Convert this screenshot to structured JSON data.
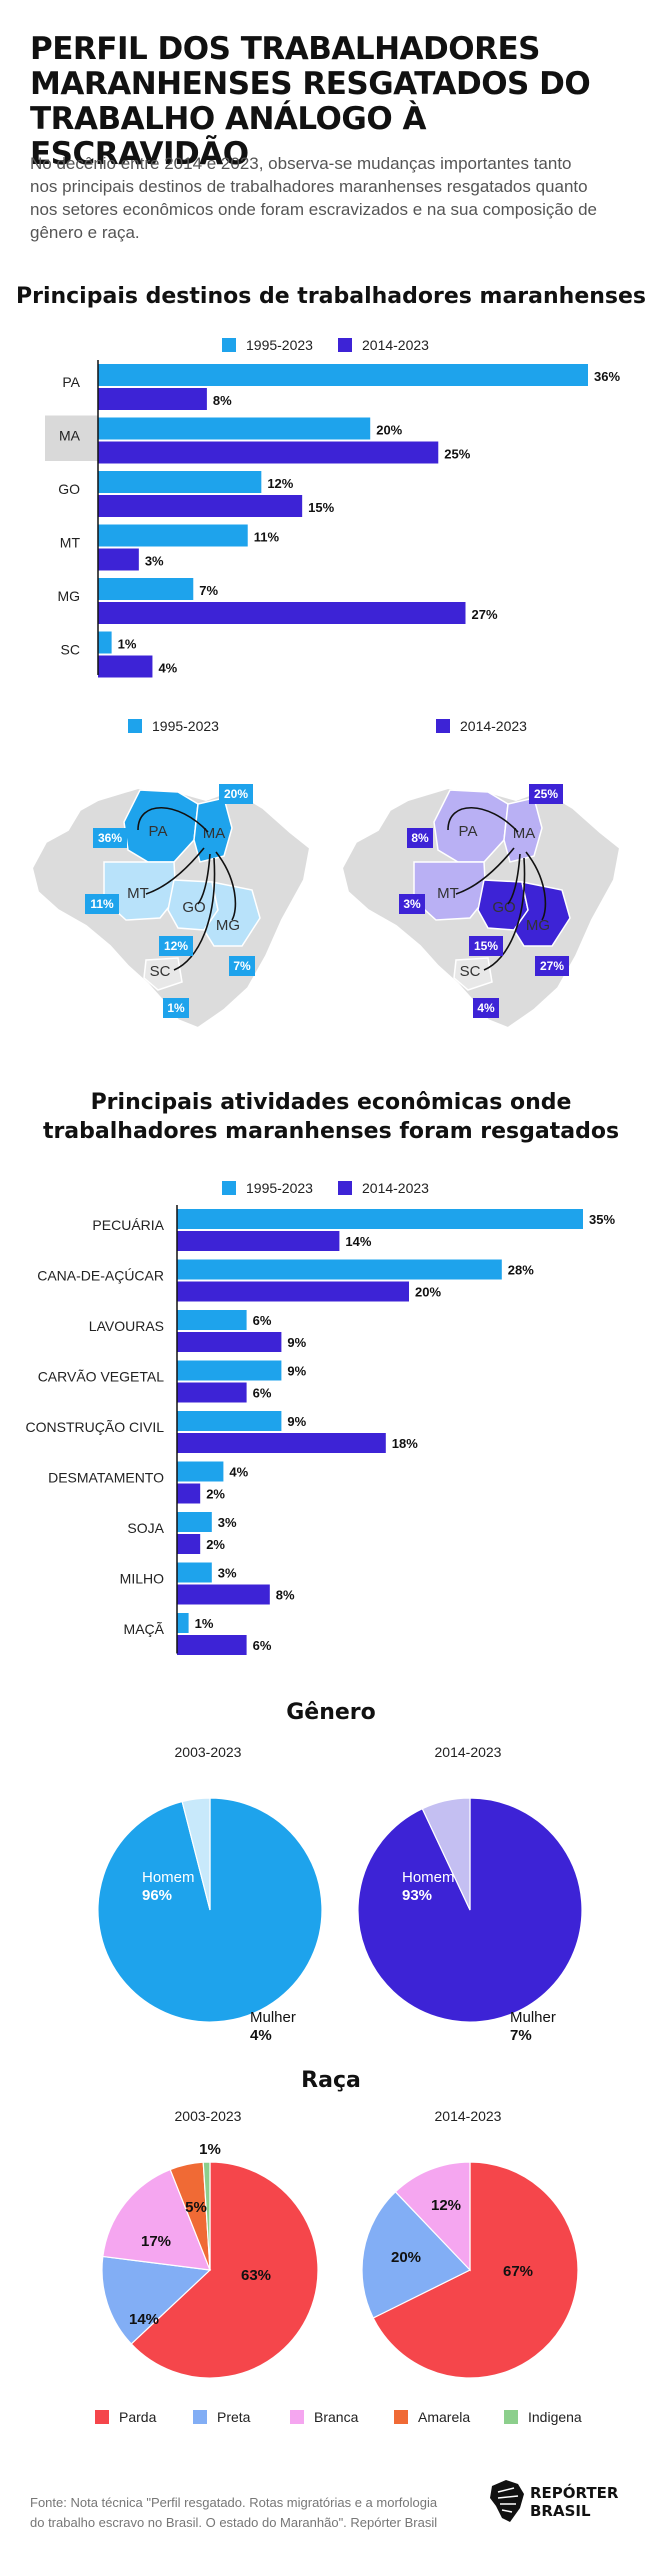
{
  "title_lines": [
    "PERFIL DOS TRABALHADORES",
    "MARANHENSES RESGATADOS DO",
    "TRABALHO ANÁLOGO À ESCRAVIDÃO"
  ],
  "intro_lines": [
    "No decênio entre 2014 e 2023, observa-se mudanças importantes tanto",
    "nos principais destinos de trabalhadores maranhenses resgatados quanto",
    "nos setores econômicos onde foram escravizados e na sua composição de",
    "gênero e raça."
  ],
  "colors": {
    "light": "#1ea3ec",
    "dark": "#3d23d6",
    "highlight": "#d9d9d9",
    "map_base": "#dcdcdc",
    "parda": "#f5464b",
    "preta": "#82aef5",
    "branca": "#f5a6f0",
    "amarela": "#f06a35",
    "indigena": "#8ccf8c"
  },
  "legend": {
    "s1": "1995-2023",
    "s2": "2014-2023"
  },
  "destinos_title": "Principais destinos de trabalhadores maranhenses",
  "atividades_title_lines": [
    "Principais atividades econômicas onde",
    "trabalhadores maranhenses foram resgatados"
  ],
  "genero_title": "Gênero",
  "raca_title": "Raça",
  "maps": {
    "left": {
      "legend": "1995-2023",
      "states": [
        "PA",
        "MA",
        "MT",
        "GO",
        "MG",
        "SC"
      ],
      "badges": {
        "PA": "36%",
        "MA": "20%",
        "MT": "11%",
        "GO": "12%",
        "MG": "7%",
        "SC": "1%"
      }
    },
    "right": {
      "legend": "2014-2023",
      "states": [
        "PA",
        "MA",
        "MT",
        "GO",
        "MG",
        "SC"
      ],
      "badges": {
        "PA": "8%",
        "MA": "25%",
        "MT": "3%",
        "GO": "15%",
        "MG": "27%",
        "SC": "4%"
      }
    }
  },
  "chart_data": [
    {
      "type": "bar",
      "orientation": "horizontal",
      "title": "Principais destinos de trabalhadores maranhenses",
      "categories": [
        "PA",
        "MA",
        "GO",
        "MT",
        "MG",
        "SC"
      ],
      "highlight": "MA",
      "series": [
        {
          "name": "1995-2023",
          "values": [
            36,
            20,
            12,
            11,
            7,
            1
          ],
          "labels": [
            "36%",
            "20%",
            "12%",
            "11%",
            "7%",
            "1%"
          ]
        },
        {
          "name": "2014-2023",
          "values": [
            8,
            25,
            15,
            3,
            27,
            4
          ],
          "labels": [
            "8%",
            "25%",
            "15%",
            "3%",
            "27%",
            "4%"
          ]
        }
      ],
      "xlim": [
        0,
        36
      ],
      "legend": "top"
    },
    {
      "type": "bar",
      "orientation": "horizontal",
      "title": "Principais atividades econômicas onde trabalhadores maranhenses foram resgatados",
      "categories": [
        "PECUÁRIA",
        "CANA-DE-AÇÚCAR",
        "LAVOURAS",
        "CARVÃO VEGETAL",
        "CONSTRUÇÃO CIVIL",
        "DESMATAMENTO",
        "SOJA",
        "MILHO",
        "MAÇÃ"
      ],
      "series": [
        {
          "name": "1995-2023",
          "values": [
            35,
            28,
            6,
            9,
            9,
            4,
            3,
            3,
            1
          ],
          "labels": [
            "35%",
            "28%",
            "6%",
            "9%",
            "9%",
            "4%",
            "3%",
            "3%",
            "1%"
          ]
        },
        {
          "name": "2014-2023",
          "values": [
            14,
            20,
            9,
            6,
            18,
            2,
            2,
            8,
            6
          ],
          "labels": [
            "14%",
            "20%",
            "9%",
            "6%",
            "18%",
            "2%",
            "2%",
            "8%",
            "6%"
          ]
        }
      ],
      "xlim": [
        0,
        35
      ],
      "legend": "top"
    },
    {
      "type": "pie",
      "title": "Gênero",
      "subtitle": "2003-2023",
      "slices": [
        {
          "name": "Homem",
          "value": 96,
          "label": "96%"
        },
        {
          "name": "Mulher",
          "value": 4,
          "label": "4%"
        }
      ]
    },
    {
      "type": "pie",
      "title": "Gênero",
      "subtitle": "2014-2023",
      "slices": [
        {
          "name": "Homem",
          "value": 93,
          "label": "93%"
        },
        {
          "name": "Mulher",
          "value": 7,
          "label": "7%"
        }
      ]
    },
    {
      "type": "pie",
      "title": "Raça",
      "subtitle": "2003-2023",
      "slices": [
        {
          "name": "Parda",
          "value": 63,
          "label": "63%"
        },
        {
          "name": "Preta",
          "value": 14,
          "label": "14%"
        },
        {
          "name": "Branca",
          "value": 17,
          "label": "17%"
        },
        {
          "name": "Amarela",
          "value": 5,
          "label": "5%"
        },
        {
          "name": "Indigena",
          "value": 1,
          "label": "1%"
        }
      ]
    },
    {
      "type": "pie",
      "title": "Raça",
      "subtitle": "2014-2023",
      "slices": [
        {
          "name": "Parda",
          "value": 67,
          "label": "67%"
        },
        {
          "name": "Preta",
          "value": 20,
          "label": "20%"
        },
        {
          "name": "Branca",
          "value": 12,
          "label": "12%"
        }
      ]
    }
  ],
  "raca_legend": [
    "Parda",
    "Preta",
    "Branca",
    "Amarela",
    "Indigena"
  ],
  "source_lines": [
    "Fonte: Nota técnica \"Perfil resgatado. Rotas migratórias e a morfologia",
    "do trabalho escravo no Brasil. O estado do Maranhão\". Repórter Brasil"
  ],
  "logo_lines": [
    "REPÓRTER",
    "BRASIL"
  ]
}
